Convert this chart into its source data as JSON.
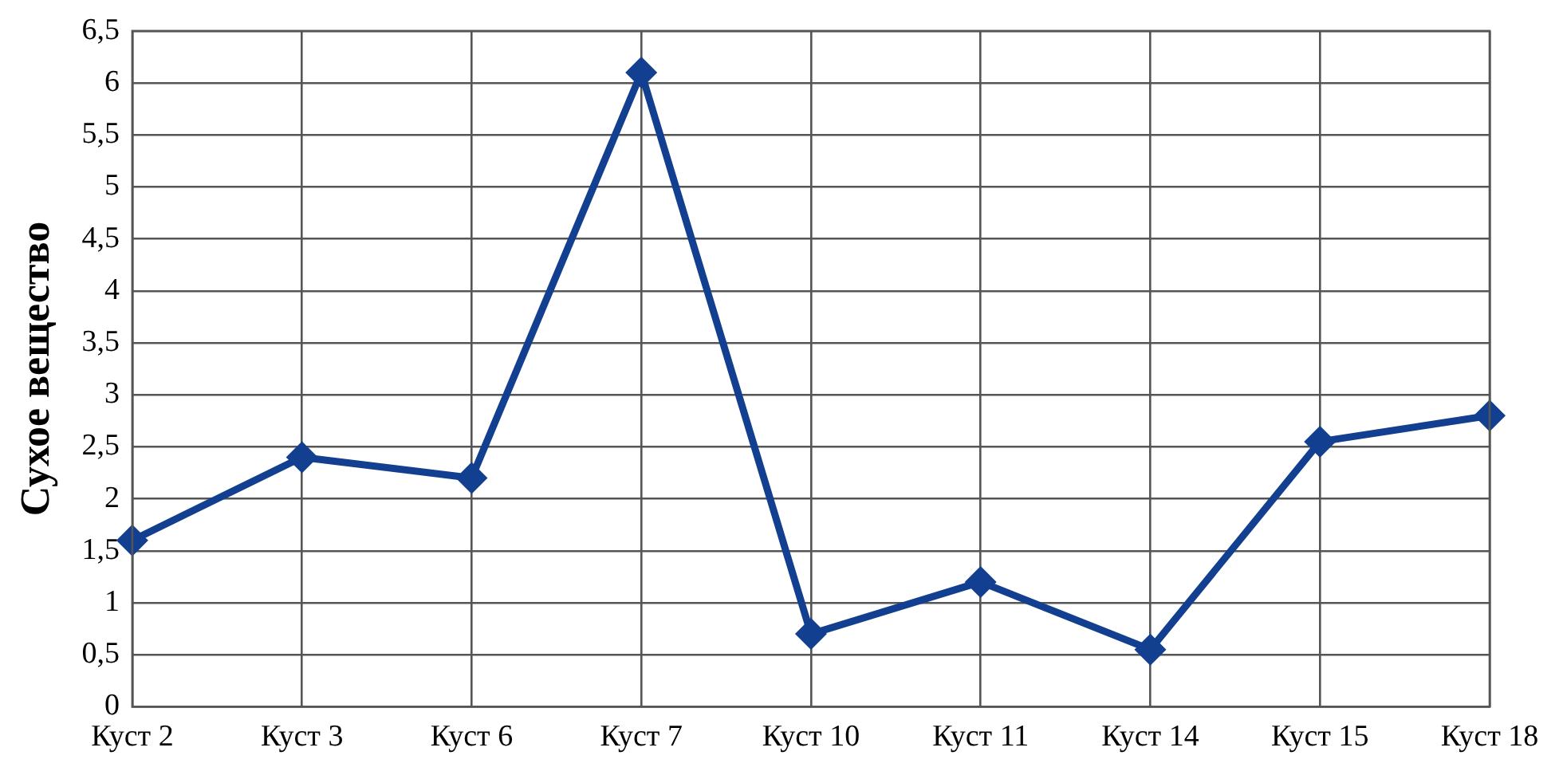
{
  "chart_data": {
    "type": "line",
    "ylabel": "Сухое вещество",
    "categories": [
      "Куст 2",
      "Куст 3",
      "Куст 6",
      "Куст 7",
      "Куст 10",
      "Куст 11",
      "Куст 14",
      "Куст 15",
      "Куст 18"
    ],
    "series": [
      {
        "color": "#123f8f",
        "values": [
          1.6,
          2.4,
          2.2,
          6.1,
          0.7,
          1.2,
          0.55,
          2.55,
          2.8
        ]
      }
    ],
    "ylim": [
      0,
      6.5
    ],
    "yticks": [
      0,
      {
        "value": 0.5,
        "label": "0,5"
      },
      1,
      {
        "value": 1.5,
        "label": "1,5"
      },
      2,
      {
        "value": 2.5,
        "label": "2,5"
      },
      3,
      {
        "value": 3.5,
        "label": "3,5"
      },
      4,
      {
        "value": 4.5,
        "label": "4,5"
      },
      5,
      {
        "value": 5.5,
        "label": "5,5"
      },
      6,
      {
        "value": 6.5,
        "label": "6,5"
      }
    ],
    "grid": true,
    "legend": false,
    "marker": "diamond",
    "line_style": "solid"
  }
}
